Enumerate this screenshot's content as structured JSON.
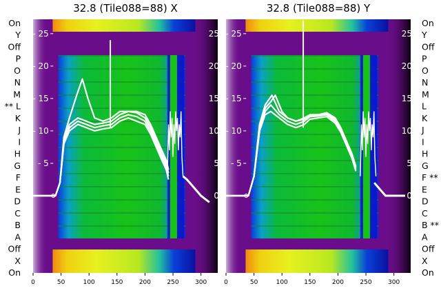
{
  "chart_data": [
    {
      "type": "heatmap",
      "title": "32.8 (Tile088=88) X",
      "row_labels": [
        "On",
        "Y",
        "Off",
        "P",
        "O",
        "N",
        "M",
        "** L",
        "K",
        "J",
        "I",
        "H",
        "G",
        "F",
        "E",
        "D",
        "C",
        "B",
        "A",
        "Off",
        "X",
        "On"
      ],
      "row_labels_side": "left",
      "xlim": [
        0,
        330
      ],
      "x_ticks": [
        "0",
        "50",
        "100",
        "150",
        "200",
        "250",
        "300"
      ],
      "inner_ylim": [
        -1,
        27
      ],
      "inner_y_ticks": [
        "0",
        "5",
        "10",
        "15",
        "20",
        "25"
      ],
      "heat_extent": [
        45,
        272
      ],
      "dark_band": [
        240,
        270
      ],
      "spike": {
        "x": 138,
        "y": 24
      },
      "series": [
        {
          "values": [
            [
              0,
              0
            ],
            [
              40,
              0
            ],
            [
              48,
              2
            ],
            [
              55,
              8
            ],
            [
              65,
              10.5
            ],
            [
              80,
              11.5
            ],
            [
              95,
              11
            ],
            [
              110,
              10.5
            ],
            [
              125,
              10.8
            ],
            [
              140,
              11
            ],
            [
              155,
              12
            ],
            [
              170,
              12.5
            ],
            [
              185,
              12.2
            ],
            [
              200,
              11.5
            ],
            [
              210,
              10
            ],
            [
              220,
              8
            ],
            [
              230,
              6
            ],
            [
              238,
              4.5
            ],
            [
              242,
              3
            ]
          ]
        },
        {
          "values": [
            [
              0,
              0
            ],
            [
              40,
              0
            ],
            [
              48,
              2
            ],
            [
              55,
              8.5
            ],
            [
              65,
              11
            ],
            [
              80,
              12
            ],
            [
              95,
              11.5
            ],
            [
              110,
              11
            ],
            [
              125,
              11.2
            ],
            [
              140,
              11.5
            ],
            [
              155,
              12.5
            ],
            [
              170,
              13
            ],
            [
              185,
              12.8
            ],
            [
              200,
              12
            ],
            [
              210,
              10.5
            ],
            [
              220,
              8.5
            ],
            [
              230,
              6.5
            ],
            [
              238,
              5
            ],
            [
              242,
              3.5
            ]
          ]
        },
        {
          "values": [
            [
              0,
              0
            ],
            [
              40,
              0
            ],
            [
              48,
              2
            ],
            [
              55,
              9
            ],
            [
              65,
              12
            ],
            [
              78,
              15.5
            ],
            [
              88,
              18
            ],
            [
              98,
              15
            ],
            [
              110,
              12
            ],
            [
              125,
              11.5
            ],
            [
              140,
              12
            ],
            [
              155,
              13
            ],
            [
              170,
              13
            ],
            [
              185,
              13
            ],
            [
              200,
              12.5
            ],
            [
              210,
              11
            ],
            [
              220,
              9
            ],
            [
              230,
              7
            ],
            [
              238,
              5.5
            ],
            [
              242,
              4
            ]
          ]
        },
        {
          "values": [
            [
              0,
              0
            ],
            [
              40,
              0
            ],
            [
              48,
              2
            ],
            [
              55,
              8
            ],
            [
              65,
              10
            ],
            [
              80,
              11
            ],
            [
              95,
              10.5
            ],
            [
              110,
              10
            ],
            [
              125,
              10.3
            ],
            [
              140,
              10.5
            ],
            [
              155,
              11.5
            ],
            [
              170,
              12
            ],
            [
              185,
              11.5
            ],
            [
              200,
              11
            ],
            [
              210,
              9.5
            ],
            [
              220,
              7.5
            ],
            [
              230,
              5.5
            ],
            [
              238,
              4
            ],
            [
              242,
              2.5
            ]
          ]
        }
      ],
      "tail": [
        [
          268,
          3
        ],
        [
          275,
          2.5
        ],
        [
          285,
          1.5
        ],
        [
          300,
          0
        ],
        [
          315,
          -1
        ]
      ]
    },
    {
      "type": "heatmap",
      "title": "32.8 (Tile088=88) Y",
      "row_labels": [
        "On",
        "Y",
        "Off",
        "P",
        "O",
        "N",
        "M",
        "L",
        "K",
        "J",
        "I",
        "H",
        "G",
        "F **",
        "E",
        "D",
        "C",
        "B **",
        "A",
        "Off",
        "X",
        "On"
      ],
      "row_labels_side": "right",
      "xlim": [
        0,
        330
      ],
      "x_ticks": [
        "0",
        "50",
        "100",
        "150",
        "200",
        "250",
        "300"
      ],
      "inner_ylim": [
        -1,
        27
      ],
      "inner_y_ticks": [
        "0",
        "5",
        "10",
        "15",
        "20",
        "25"
      ],
      "heat_extent": [
        45,
        272
      ],
      "dark_band": [
        240,
        270
      ],
      "spike": {
        "x": 138,
        "y": 27
      },
      "series": [
        {
          "values": [
            [
              0,
              0
            ],
            [
              40,
              0
            ],
            [
              50,
              3
            ],
            [
              60,
              10
            ],
            [
              70,
              13
            ],
            [
              80,
              14
            ],
            [
              95,
              12.5
            ],
            [
              110,
              11.5
            ],
            [
              125,
              11
            ],
            [
              140,
              11.5
            ],
            [
              150,
              12.2
            ],
            [
              165,
              12.3
            ],
            [
              180,
              12.5
            ],
            [
              195,
              11.5
            ],
            [
              205,
              10
            ],
            [
              215,
              8
            ],
            [
              225,
              6
            ],
            [
              232,
              4
            ]
          ]
        },
        {
          "values": [
            [
              0,
              0
            ],
            [
              40,
              0
            ],
            [
              50,
              3
            ],
            [
              60,
              11
            ],
            [
              70,
              14
            ],
            [
              82,
              15.5
            ],
            [
              95,
              13
            ],
            [
              110,
              12
            ],
            [
              125,
              11.5
            ],
            [
              140,
              12
            ],
            [
              150,
              12.5
            ],
            [
              165,
              12.5
            ],
            [
              180,
              12.8
            ],
            [
              195,
              12
            ],
            [
              205,
              10.5
            ],
            [
              215,
              8.5
            ],
            [
              225,
              6.5
            ],
            [
              232,
              4.5
            ]
          ]
        },
        {
          "values": [
            [
              0,
              0
            ],
            [
              40,
              0
            ],
            [
              50,
              3
            ],
            [
              60,
              10.5
            ],
            [
              70,
              13.5
            ],
            [
              80,
              14.5
            ],
            [
              88,
              15.5
            ],
            [
              100,
              13
            ],
            [
              110,
              12
            ],
            [
              125,
              11.5
            ],
            [
              140,
              11.8
            ],
            [
              150,
              12.4
            ],
            [
              165,
              12.5
            ],
            [
              180,
              12.6
            ],
            [
              195,
              11.8
            ],
            [
              205,
              10.2
            ],
            [
              215,
              8.2
            ],
            [
              225,
              6.2
            ],
            [
              232,
              4.2
            ]
          ]
        },
        {
          "values": [
            [
              0,
              0
            ],
            [
              40,
              0
            ],
            [
              50,
              3
            ],
            [
              60,
              10
            ],
            [
              70,
              12.5
            ],
            [
              80,
              13
            ],
            [
              95,
              12
            ],
            [
              110,
              11
            ],
            [
              125,
              10.5
            ],
            [
              140,
              11
            ],
            [
              150,
              11.8
            ],
            [
              165,
              12
            ],
            [
              180,
              12.2
            ],
            [
              195,
              11.2
            ],
            [
              205,
              9.8
            ],
            [
              215,
              7.8
            ],
            [
              225,
              5.8
            ],
            [
              232,
              3.8
            ]
          ]
        }
      ],
      "tail": [
        [
          265,
          2
        ],
        [
          275,
          1
        ],
        [
          285,
          0
        ],
        [
          300,
          0
        ],
        [
          320,
          0
        ]
      ]
    }
  ]
}
